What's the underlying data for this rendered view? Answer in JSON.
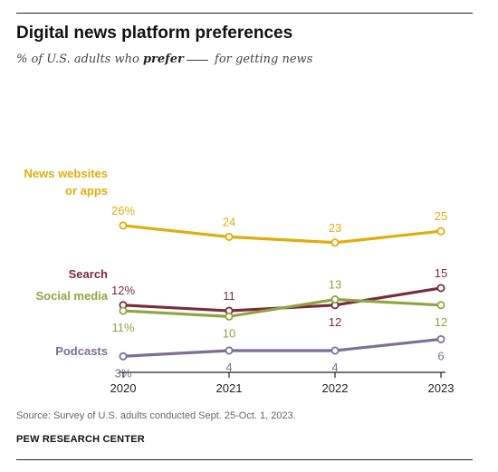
{
  "title": "Digital news platform preferences",
  "subtitle": {
    "pre": "% of U.S. adults who ",
    "emph": "prefer",
    "post": " for getting news"
  },
  "source": "Source: Survey of U.S. adults conducted Sept. 25-Oct. 1, 2023.",
  "organization": "PEW RESEARCH CENTER",
  "chart_data": {
    "type": "line",
    "x": [
      "2020",
      "2021",
      "2022",
      "2023"
    ],
    "series": [
      {
        "name": "News websites or apps",
        "name_lines": [
          "News websites",
          "or apps"
        ],
        "color": "#e0ad0c",
        "values": [
          26,
          24,
          23,
          25
        ],
        "labels": [
          "26%",
          "24",
          "23",
          "25"
        ],
        "label_pos": [
          "above",
          "above",
          "above",
          "above"
        ]
      },
      {
        "name": "Search",
        "name_lines": [
          "Search"
        ],
        "color": "#7c2b3c",
        "values": [
          12,
          11,
          12,
          15
        ],
        "labels": [
          "12%",
          "11",
          "12",
          "15"
        ],
        "label_pos": [
          "above",
          "above",
          "below",
          "above"
        ]
      },
      {
        "name": "Social media",
        "name_lines": [
          "Social media"
        ],
        "color": "#8ea640",
        "values": [
          11,
          10,
          13,
          12
        ],
        "labels": [
          "11%",
          "10",
          "13",
          "12"
        ],
        "label_pos": [
          "below",
          "below",
          "above",
          "below"
        ]
      },
      {
        "name": "Podcasts",
        "name_lines": [
          "Podcasts"
        ],
        "color": "#7d6f95",
        "values": [
          3,
          4,
          4,
          6
        ],
        "labels": [
          "3%",
          "4",
          "4",
          "6"
        ],
        "label_pos": [
          "below",
          "below",
          "below",
          "below"
        ]
      }
    ],
    "ylim": [
      0,
      30
    ],
    "grid": false,
    "legend": "left, inline series labels"
  }
}
